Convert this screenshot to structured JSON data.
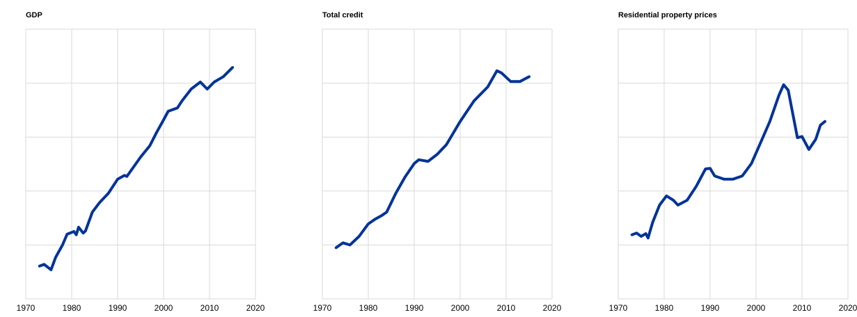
{
  "chart_data": [
    {
      "type": "line",
      "title": "GDP",
      "x": [
        1973,
        1974,
        1975.5,
        1976.5,
        1978,
        1979,
        1980.5,
        1981,
        1981.5,
        1982.5,
        1983,
        1984.5,
        1986,
        1988,
        1990,
        1991.5,
        1992,
        1993.5,
        1995,
        1997,
        1998.5,
        2000,
        2001,
        2003,
        2004,
        2006,
        2008,
        2009.5,
        2011,
        2013,
        2015
      ],
      "series": [
        {
          "color": "#003399",
          "values": [
            0.61,
            0.64,
            0.54,
            0.77,
            1.0,
            1.2,
            1.25,
            1.19,
            1.33,
            1.22,
            1.26,
            1.61,
            1.78,
            1.96,
            2.22,
            2.29,
            2.27,
            2.45,
            2.63,
            2.84,
            3.09,
            3.32,
            3.48,
            3.54,
            3.67,
            3.89,
            4.02,
            3.89,
            4.02,
            4.12,
            4.29
          ]
        }
      ],
      "xlim": [
        1970,
        2020
      ],
      "xticks": [
        1970,
        1980,
        1990,
        2000,
        2010,
        2020
      ],
      "ylim": [
        0,
        5
      ],
      "yticks": [
        0,
        1,
        2,
        3,
        4,
        5
      ],
      "grid": true
    },
    {
      "type": "line",
      "title": "Total credit",
      "x": [
        1973,
        1974.5,
        1976,
        1978,
        1980,
        1981.5,
        1983,
        1984,
        1986,
        1988,
        1990,
        1991,
        1993,
        1995,
        1997,
        2000,
        2003,
        2006,
        2008,
        2009,
        2011,
        2013,
        2015
      ],
      "series": [
        {
          "color": "#003399",
          "values": [
            0.95,
            1.04,
            1.0,
            1.16,
            1.39,
            1.48,
            1.55,
            1.61,
            1.96,
            2.26,
            2.51,
            2.58,
            2.55,
            2.68,
            2.86,
            3.29,
            3.67,
            3.93,
            4.23,
            4.19,
            4.03,
            4.03,
            4.12
          ]
        }
      ],
      "xlim": [
        1970,
        2020
      ],
      "xticks": [
        1970,
        1980,
        1990,
        2000,
        2010,
        2020
      ],
      "ylim": [
        0,
        5
      ],
      "yticks": [
        0,
        1,
        2,
        3,
        4,
        5
      ],
      "grid": true
    },
    {
      "type": "line",
      "title": "Residential property prices",
      "x": [
        1973,
        1974,
        1975,
        1976,
        1976.5,
        1977.5,
        1979,
        1980.5,
        1982,
        1983,
        1985,
        1987,
        1989,
        1990,
        1991,
        1993,
        1995,
        1997,
        1999,
        2001,
        2003,
        2005,
        2006,
        2007,
        2009,
        2010,
        2011.5,
        2013,
        2014,
        2015
      ],
      "series": [
        {
          "color": "#003399",
          "values": [
            1.19,
            1.22,
            1.16,
            1.21,
            1.13,
            1.42,
            1.74,
            1.91,
            1.83,
            1.74,
            1.83,
            2.09,
            2.41,
            2.42,
            2.28,
            2.22,
            2.22,
            2.28,
            2.51,
            2.9,
            3.29,
            3.78,
            3.97,
            3.87,
            2.99,
            3.01,
            2.77,
            2.96,
            3.22,
            3.29
          ]
        }
      ],
      "xlim": [
        1970,
        2020
      ],
      "xticks": [
        1970,
        1980,
        1990,
        2000,
        2010,
        2020
      ],
      "ylim": [
        0,
        5
      ],
      "yticks": [
        0,
        1,
        2,
        3,
        4,
        5
      ],
      "grid": true
    }
  ]
}
